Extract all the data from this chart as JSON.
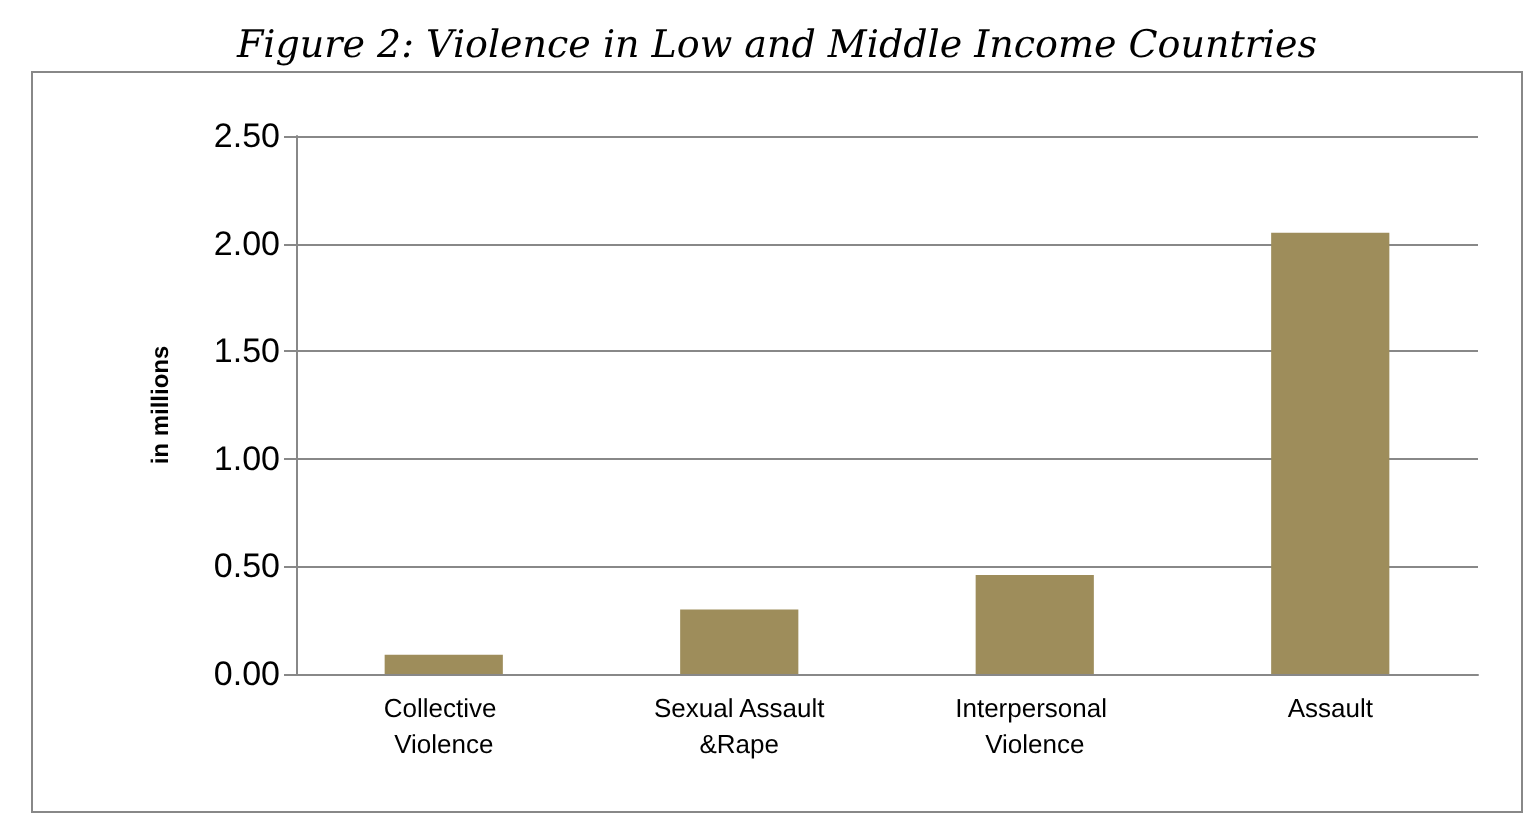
{
  "chart_data": {
    "type": "bar",
    "title": "Figure 2: Violence in Low and Middle Income Countries",
    "ylabel": "in millions",
    "categories": [
      "Collective Violence",
      "Sexual Assault&Rape",
      "Interpersonal Violence",
      "Assault"
    ],
    "values": [
      0.09,
      0.3,
      0.46,
      2.05
    ],
    "color": "#9e8d5b",
    "ylim": [
      0,
      2.5
    ],
    "yticks": [
      {
        "value": 0,
        "label": "0.00"
      },
      {
        "value": 0.5,
        "label": "0.50"
      },
      {
        "value": 1,
        "label": "1.00"
      },
      {
        "value": 1.5,
        "label": "1.50"
      },
      {
        "value": 2,
        "label": "2.00"
      },
      {
        "value": 2.5,
        "label": "2.50"
      }
    ],
    "grid": "y"
  }
}
